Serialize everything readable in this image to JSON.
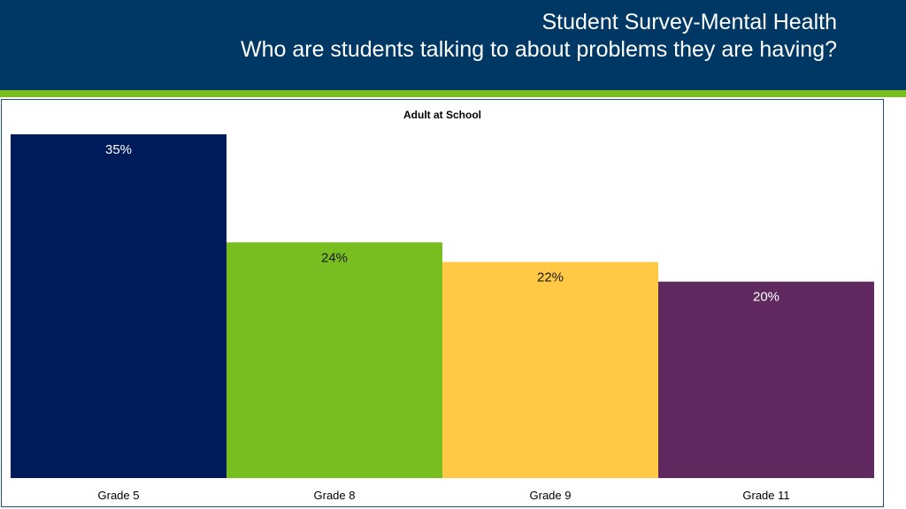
{
  "header": {
    "line1": "Student Survey-Mental Health",
    "line2": "Who are students talking to about problems they are having?"
  },
  "colors": {
    "header_bg": "#003865",
    "accent": "#78be20",
    "bars": [
      "#001b5a",
      "#78be20",
      "#ffc845",
      "#5f295f"
    ],
    "label_light": "#ffffff",
    "label_dark": "#1a1a1a"
  },
  "chart_data": {
    "type": "bar",
    "title": "Adult at School",
    "categories": [
      "Grade 5",
      "Grade 8",
      "Grade 9",
      "Grade 11"
    ],
    "values": [
      35,
      24,
      22,
      20
    ],
    "value_labels": [
      "35%",
      "24%",
      "22%",
      "20%"
    ],
    "ylim": [
      0,
      35
    ],
    "grid": false,
    "legend": "none",
    "xlabel": "",
    "ylabel": ""
  }
}
